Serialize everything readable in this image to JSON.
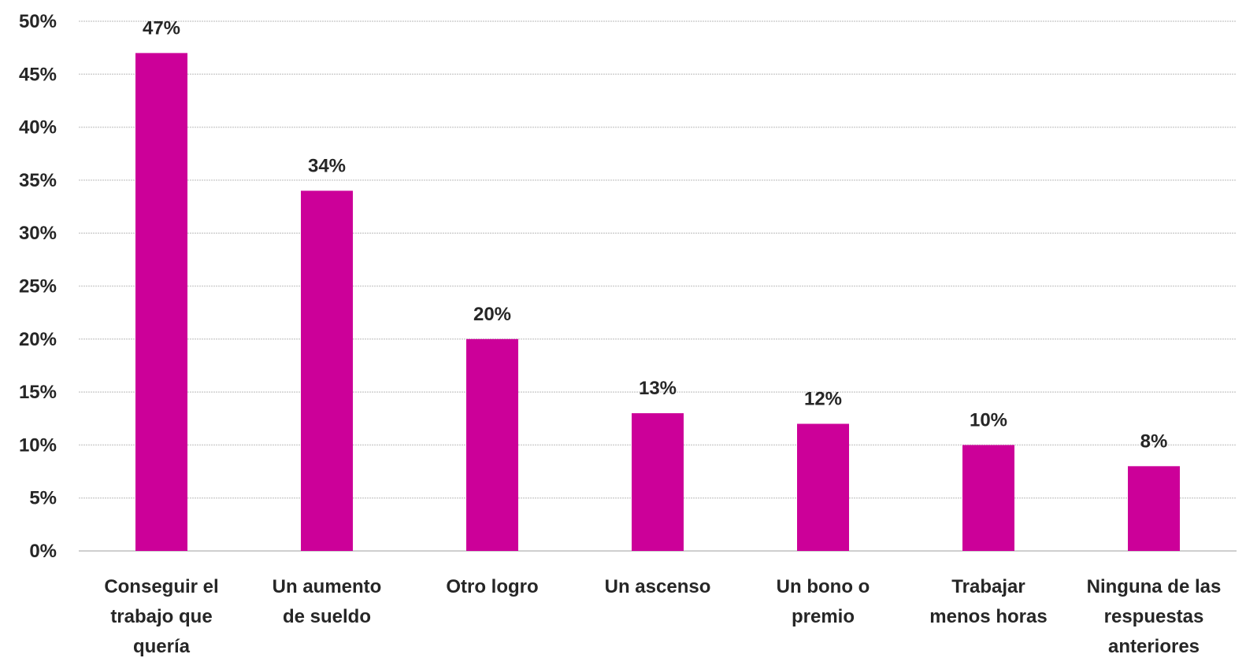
{
  "chart_data": {
    "type": "bar",
    "title": "",
    "xlabel": "",
    "ylabel": "",
    "categories": [
      [
        "Conseguir el",
        "trabajo que",
        "quería"
      ],
      [
        "Un aumento",
        "de sueldo"
      ],
      [
        "Otro logro"
      ],
      [
        "Un ascenso"
      ],
      [
        "Un bono o",
        "premio"
      ],
      [
        "Trabajar",
        "menos horas"
      ],
      [
        "Ninguna de las",
        "respuestas",
        "anteriores"
      ]
    ],
    "values": [
      47,
      34,
      20,
      13,
      12,
      10,
      8
    ],
    "data_labels": [
      "47%",
      "34%",
      "20%",
      "13%",
      "12%",
      "10%",
      "8%"
    ],
    "ylim": [
      0,
      50
    ],
    "yticks": [
      0,
      5,
      10,
      15,
      20,
      25,
      30,
      35,
      40,
      45,
      50
    ],
    "ytick_labels": [
      "0%",
      "5%",
      "10%",
      "15%",
      "20%",
      "25%",
      "30%",
      "35%",
      "40%",
      "45%",
      "50%"
    ],
    "grid": true,
    "legend": "none",
    "bar_color": "#cc0099",
    "text_color": "#262626",
    "grid_color": "#d0d0d0"
  }
}
